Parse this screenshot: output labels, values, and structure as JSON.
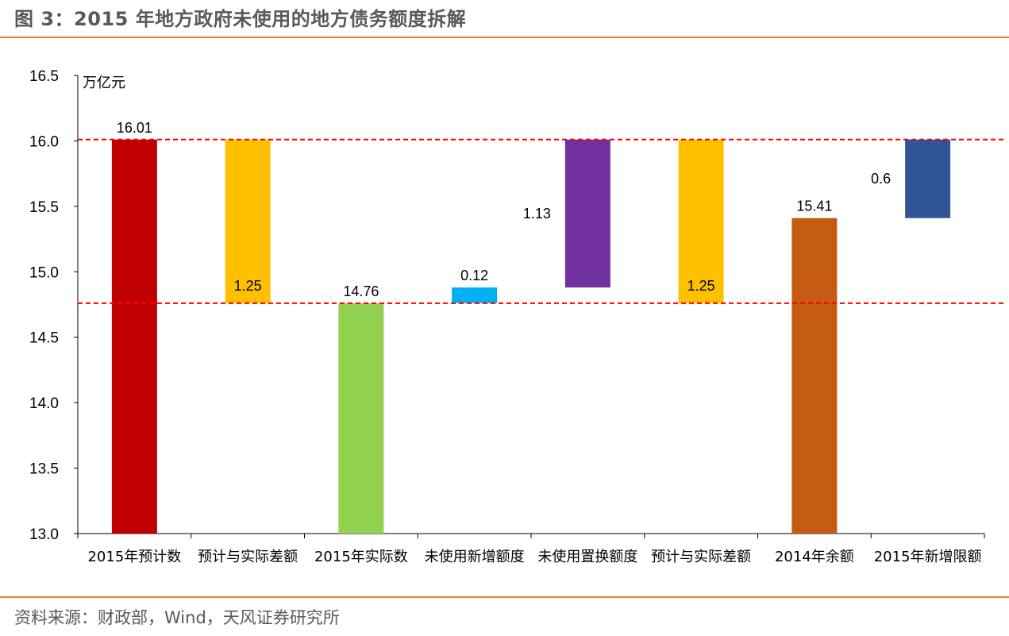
{
  "title": "图 3：2015 年地方政府未使用的地方债务额度拆解",
  "source": "资料来源：财政部，Wind，天风证券研究所",
  "chart_data": {
    "type": "bar",
    "subtype": "waterfall",
    "unit": "万亿元",
    "ylim": [
      13.0,
      16.5
    ],
    "yticks": [
      "13.0",
      "13.5",
      "14.0",
      "14.5",
      "15.0",
      "15.5",
      "16.0",
      "16.5"
    ],
    "reference_lines": [
      16.01,
      14.76
    ],
    "reference_line_color": "#FF0000",
    "categories": [
      "2015年预计数",
      "预计与实际差额",
      "2015年实际数",
      "未使用新增额度",
      "未使用置换额度",
      "预计与实际差额",
      "2014年余额",
      "2015年新增限额"
    ],
    "bars": [
      {
        "bottom": 13.0,
        "top": 16.01,
        "label": "16.01",
        "label_pos": "above",
        "color": "#C00000"
      },
      {
        "bottom": 14.76,
        "top": 16.01,
        "label": "1.25",
        "label_pos": "inside-bottom",
        "color": "#FFC000"
      },
      {
        "bottom": 13.0,
        "top": 14.76,
        "label": "14.76",
        "label_pos": "above",
        "color": "#92D050"
      },
      {
        "bottom": 14.76,
        "top": 14.88,
        "label": "0.12",
        "label_pos": "above",
        "color": "#00B0F0"
      },
      {
        "bottom": 14.88,
        "top": 16.01,
        "label": "1.13",
        "label_pos": "left",
        "color": "#7030A0"
      },
      {
        "bottom": 14.76,
        "top": 16.01,
        "label": "1.25",
        "label_pos": "inside-bottom",
        "color": "#FFC000"
      },
      {
        "bottom": 13.0,
        "top": 15.41,
        "label": "15.41",
        "label_pos": "above",
        "color": "#C55A11"
      },
      {
        "bottom": 15.41,
        "top": 16.01,
        "label": "0.6",
        "label_pos": "left",
        "color": "#2F5597"
      }
    ],
    "grid": false,
    "legend": "none"
  }
}
